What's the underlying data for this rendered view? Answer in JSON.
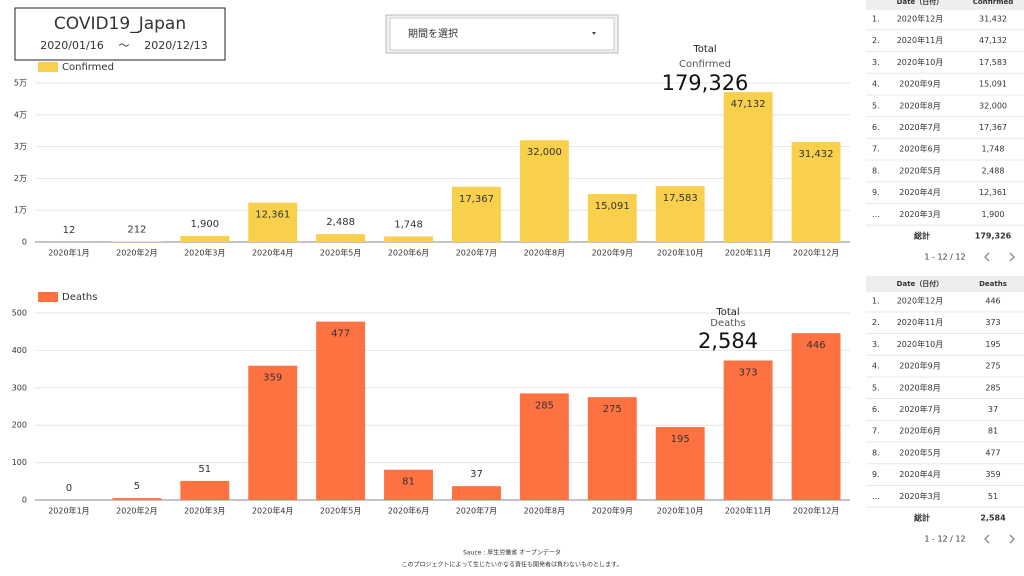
{
  "header": {
    "title": "COVID19_Japan",
    "date_from": "2020/01/16",
    "separator": "〜",
    "date_to": "2020/12/13"
  },
  "dropdown": {
    "label": "期間を選択"
  },
  "chart_data": [
    {
      "type": "bar",
      "categories": [
        "2020年1月",
        "2020年2月",
        "2020年3月",
        "2020年4月",
        "2020年5月",
        "2020年6月",
        "2020年7月",
        "2020年8月",
        "2020年9月",
        "2020年10月",
        "2020年11月",
        "2020年12月"
      ],
      "series": [
        {
          "name": "Confirmed",
          "color": "#f9d04c",
          "values": [
            12,
            212,
            1900,
            12361,
            2488,
            1748,
            17367,
            32000,
            15091,
            17583,
            47132,
            31432
          ],
          "value_labels": [
            "12",
            "212",
            "1,900",
            "12,361",
            "2,488",
            "1,748",
            "17,367",
            "32,000",
            "15,091",
            "17,583",
            "47,132",
            "31,432"
          ]
        }
      ],
      "ylim": [
        0,
        50000
      ],
      "yticks": [
        0,
        {
          "value": 10000,
          "label": "1万"
        },
        {
          "value": 20000,
          "label": "2万"
        },
        {
          "value": 30000,
          "label": "3万"
        },
        {
          "value": 40000,
          "label": "4万"
        },
        {
          "value": 50000,
          "label": "5万"
        }
      ],
      "grid": true,
      "label_color": "#333333",
      "total": {
        "label": "Total",
        "name": "Confirmed",
        "value": "179,326"
      }
    },
    {
      "type": "bar",
      "categories": [
        "2020年1月",
        "2020年2月",
        "2020年3月",
        "2020年4月",
        "2020年5月",
        "2020年6月",
        "2020年7月",
        "2020年8月",
        "2020年9月",
        "2020年10月",
        "2020年11月",
        "2020年12月"
      ],
      "series": [
        {
          "name": "Deaths",
          "color": "#fe7141",
          "values": [
            0,
            5,
            51,
            359,
            477,
            81,
            37,
            285,
            275,
            195,
            373,
            446
          ]
        }
      ],
      "ylim": [
        0,
        500
      ],
      "yticks": [
        0,
        100,
        200,
        300,
        400,
        500
      ],
      "grid": true,
      "label_color": "#ffffff",
      "total": {
        "label": "Total",
        "name": "Deaths",
        "value": "2,584"
      }
    }
  ],
  "tables": [
    {
      "columns": [
        "Date（日付）",
        "Confirmed"
      ],
      "rows": [
        [
          "1.",
          "2020年12月",
          "31,432"
        ],
        [
          "2.",
          "2020年11月",
          "47,132"
        ],
        [
          "3.",
          "2020年10月",
          "17,583"
        ],
        [
          "4.",
          "2020年9月",
          "15,091"
        ],
        [
          "5.",
          "2020年8月",
          "32,000"
        ],
        [
          "6.",
          "2020年7月",
          "17,367"
        ],
        [
          "7.",
          "2020年6月",
          "1,748"
        ],
        [
          "8.",
          "2020年5月",
          "2,488"
        ],
        [
          "9.",
          "2020年4月",
          "12,361"
        ],
        [
          "…",
          "2020年3月",
          "1,900"
        ]
      ],
      "total": [
        "総計",
        "179,326"
      ],
      "pagination": "1 - 12 / 12"
    },
    {
      "columns": [
        "Date（日付）",
        "Deaths"
      ],
      "rows": [
        [
          "1.",
          "2020年12月",
          "446"
        ],
        [
          "2.",
          "2020年11月",
          "373"
        ],
        [
          "3.",
          "2020年10月",
          "195"
        ],
        [
          "4.",
          "2020年9月",
          "275"
        ],
        [
          "5.",
          "2020年8月",
          "285"
        ],
        [
          "6.",
          "2020年7月",
          "37"
        ],
        [
          "7.",
          "2020年6月",
          "81"
        ],
        [
          "8.",
          "2020年5月",
          "477"
        ],
        [
          "9.",
          "2020年4月",
          "359"
        ],
        [
          "…",
          "2020年3月",
          "51"
        ]
      ],
      "total": [
        "総計",
        "2,584"
      ],
      "pagination": "1 - 12 / 12"
    }
  ],
  "footer": {
    "source": "Sauce : 厚生労働省 オープンデータ",
    "disclaimer": "このプロジェクトによって生じたいかなる責任も開発者は負わないものとします。"
  }
}
